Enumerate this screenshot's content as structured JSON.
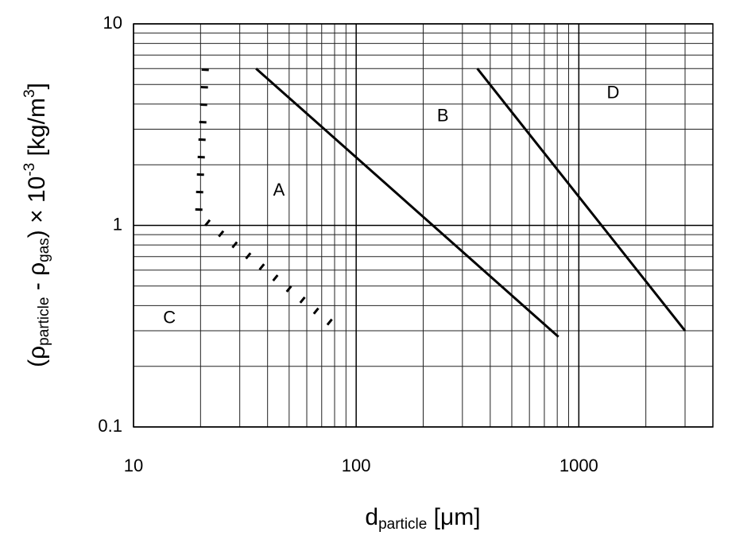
{
  "chart_data": {
    "type": "line",
    "x_label": [
      "d",
      "particle",
      " [μm]"
    ],
    "y_label": [
      "(ρ",
      "particle",
      " - ρ",
      "gas",
      ") × 10",
      "-3",
      " [kg/m",
      "3",
      "]"
    ],
    "xlim": [
      10,
      4000
    ],
    "ylim": [
      0.1,
      10
    ],
    "xticks": [
      10,
      100,
      1000
    ],
    "yticks": [
      0.1,
      1,
      10
    ],
    "xminor": [
      20,
      30,
      40,
      50,
      60,
      70,
      80,
      90,
      200,
      300,
      400,
      500,
      600,
      700,
      800,
      900,
      2000,
      3000,
      4000
    ],
    "yminor": [
      0.2,
      0.3,
      0.4,
      0.5,
      0.6,
      0.7,
      0.8,
      0.9,
      2,
      3,
      4,
      5,
      6,
      7,
      8,
      9
    ],
    "log_x": true,
    "log_y": true,
    "grid": true,
    "series": [
      {
        "x": [
          21,
          19.6,
          79
        ],
        "values": [
          6,
          1.12,
          0.32
        ],
        "color": "#000000",
        "dashed": true
      },
      {
        "x": [
          35.5,
          810
        ],
        "values": [
          6,
          0.28
        ],
        "color": "#000000",
        "dashed": false
      },
      {
        "x": [
          350,
          3000
        ],
        "values": [
          6,
          0.3
        ],
        "color": "#000000",
        "dashed": false
      }
    ],
    "annotations": [
      {
        "text": "A",
        "x": 45,
        "y": 1.48
      },
      {
        "text": "B",
        "x": 245,
        "y": 3.47
      },
      {
        "text": "C",
        "x": 14.5,
        "y": 0.345
      },
      {
        "text": "D",
        "x": 1425,
        "y": 4.5
      }
    ]
  }
}
